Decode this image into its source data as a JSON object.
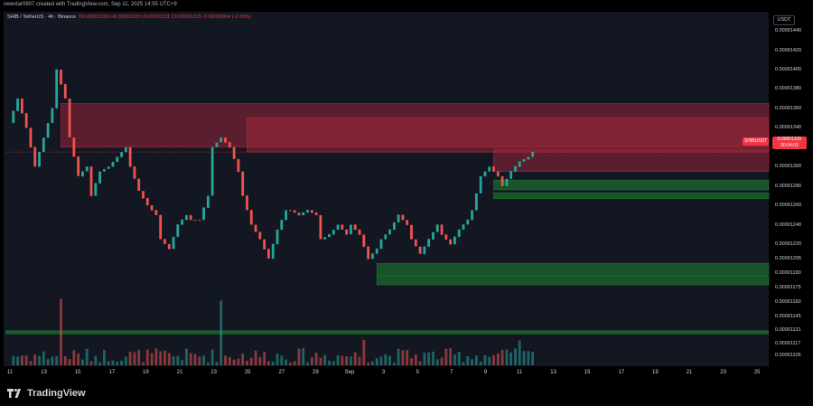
{
  "attribution": "newstar0907 created with TradingView.com, Sep 11, 2025 14:55 UTC+9",
  "legend": {
    "symbol": "SHIB / TetherUS · 4h · Binance",
    "ohlc": "O0.00001318 H0.00001320 L0.00001311 C0.00001315 -0.00000004 (-0.30%)"
  },
  "currency": "USDT",
  "price_tag": {
    "symbol": "SHIBUSDT",
    "price": "0.00001315",
    "countdown": "00:04:03"
  },
  "logo": {
    "text": "TradingView"
  },
  "colors": {
    "up": "#26a69a",
    "down": "#ef5350",
    "resistance_zone": "#b2283d",
    "support_zone": "#1f7a2e",
    "background": "#131722"
  },
  "chart_data": {
    "type": "candlestick",
    "title": "SHIB / TetherUS · 4h · Binance",
    "ylim": [
      1.095e-05,
      1.455e-05
    ],
    "y_ticks": [
      "0.00001440",
      "0.00001420",
      "0.00001400",
      "0.00001380",
      "0.00001360",
      "0.00001340",
      "0.00001320",
      "0.00001300",
      "0.00001280",
      "0.00001260",
      "0.00001240",
      "0.00001220",
      "0.00001205",
      "0.00001190",
      "0.00001175",
      "0.00001160",
      "0.00001145",
      "0.00001131",
      "0.00001117",
      "0.00001105"
    ],
    "x_ticks": [
      "11",
      "13",
      "15",
      "17",
      "19",
      "21",
      "23",
      "25",
      "27",
      "29",
      "Sep",
      "3",
      "5",
      "7",
      "9",
      "11",
      "13",
      "15",
      "17",
      "19",
      "21",
      "23",
      "25"
    ],
    "close_anchors": [
      [
        0,
        1.345e-05
      ],
      [
        2,
        1.37e-05
      ],
      [
        4,
        1.34e-05
      ],
      [
        6,
        1.3e-05
      ],
      [
        8,
        1.33e-05
      ],
      [
        10,
        1.36e-05
      ],
      [
        11,
        1.4e-05
      ],
      [
        13,
        1.37e-05
      ],
      [
        14,
        1.33e-05
      ],
      [
        16,
        1.29e-05
      ],
      [
        18,
        1.3e-05
      ],
      [
        19,
        1.27e-05
      ],
      [
        21,
        1.295e-05
      ],
      [
        23,
        1.3e-05
      ],
      [
        25,
        1.31e-05
      ],
      [
        27,
        1.32e-05
      ],
      [
        28,
        1.3e-05
      ],
      [
        30,
        1.275e-05
      ],
      [
        32,
        1.26e-05
      ],
      [
        34,
        1.25e-05
      ],
      [
        35,
        1.225e-05
      ],
      [
        37,
        1.215e-05
      ],
      [
        39,
        1.24e-05
      ],
      [
        41,
        1.25e-05
      ],
      [
        42,
        1.245e-05
      ],
      [
        44,
        1.245e-05
      ],
      [
        46,
        1.27e-05
      ],
      [
        47,
        1.32e-05
      ],
      [
        49,
        1.33e-05
      ],
      [
        51,
        1.32e-05
      ],
      [
        53,
        1.295e-05
      ],
      [
        54,
        1.27e-05
      ],
      [
        56,
        1.24e-05
      ],
      [
        58,
        1.225e-05
      ],
      [
        60,
        1.205e-05
      ],
      [
        62,
        1.235e-05
      ],
      [
        64,
        1.255e-05
      ],
      [
        65,
        1.255e-05
      ],
      [
        67,
        1.25e-05
      ],
      [
        69,
        1.255e-05
      ],
      [
        71,
        1.25e-05
      ],
      [
        72,
        1.225e-05
      ],
      [
        74,
        1.23e-05
      ],
      [
        76,
        1.24e-05
      ],
      [
        78,
        1.23e-05
      ],
      [
        79,
        1.24e-05
      ],
      [
        81,
        1.23e-05
      ],
      [
        83,
        1.205e-05
      ],
      [
        85,
        1.215e-05
      ],
      [
        86,
        1.225e-05
      ],
      [
        88,
        1.235e-05
      ],
      [
        90,
        1.25e-05
      ],
      [
        92,
        1.24e-05
      ],
      [
        93,
        1.225e-05
      ],
      [
        95,
        1.21e-05
      ],
      [
        97,
        1.225e-05
      ],
      [
        99,
        1.24e-05
      ],
      [
        100,
        1.23e-05
      ],
      [
        102,
        1.22e-05
      ],
      [
        104,
        1.235e-05
      ],
      [
        106,
        1.245e-05
      ],
      [
        107,
        1.255e-05
      ],
      [
        109,
        1.29e-05
      ],
      [
        111,
        1.3e-05
      ],
      [
        113,
        1.29e-05
      ],
      [
        114,
        1.28e-05
      ],
      [
        116,
        1.295e-05
      ],
      [
        118,
        1.305e-05
      ],
      [
        120,
        1.31e-05
      ],
      [
        121,
        1.315e-05
      ]
    ],
    "zones": [
      {
        "kind": "resistance",
        "from_index": 12,
        "to_index": 124,
        "top": 1.365e-05,
        "bottom": 1.32e-05
      },
      {
        "kind": "resistance",
        "from_index": 55,
        "to_index": 124,
        "top": 1.35e-05,
        "bottom": 1.315e-05
      },
      {
        "kind": "resistance",
        "from_index": 112,
        "to_index": 124,
        "top": 1.318e-05,
        "bottom": 1.295e-05
      },
      {
        "kind": "support",
        "from_index": 112,
        "to_index": 124,
        "top": 1.286e-05,
        "bottom": 1.276e-05
      },
      {
        "kind": "support",
        "from_index": 112,
        "to_index": 124,
        "top": 1.273e-05,
        "bottom": 1.267e-05
      },
      {
        "kind": "support",
        "from_index": 85,
        "to_index": 124,
        "top": 1.2e-05,
        "bottom": 1.188e-05
      },
      {
        "kind": "support",
        "from_index": 85,
        "to_index": 124,
        "top": 1.187e-05,
        "bottom": 1.178e-05
      }
    ],
    "volume_support_zone": {
      "top": 1.131e-05,
      "bottom": 1.127e-05
    },
    "current_price": 1.315e-05
  }
}
